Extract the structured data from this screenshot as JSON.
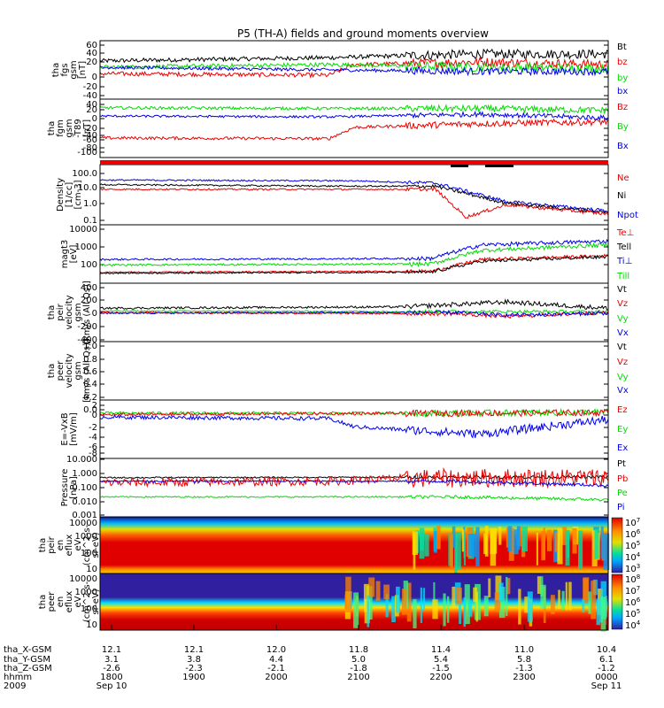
{
  "title": "P5 (TH-A) fields and ground moments overview",
  "colors": {
    "black": "#000000",
    "red": "#ee0000",
    "green": "#00dd00",
    "blue": "#0000ee"
  },
  "chart_data": {
    "type": "line",
    "x_time_ticks": [
      "1800",
      "1900",
      "2000",
      "2100",
      "2200",
      "2300",
      "0000"
    ],
    "x_date_labels": {
      "start": "Sep 10",
      "end": "Sep 11"
    },
    "x_year": "2009",
    "ephemeris": [
      {
        "label": "tha_X-GSM",
        "values": [
          "12.1",
          "12.1",
          "12.0",
          "11.8",
          "11.4",
          "11.0",
          "10.4"
        ]
      },
      {
        "label": "tha_Y-GSM",
        "values": [
          "3.1",
          "3.8",
          "4.4",
          "5.0",
          "5.4",
          "5.8",
          "6.1"
        ]
      },
      {
        "label": "tha_Z-GSM",
        "values": [
          "-2.6",
          "-2.3",
          "-2.1",
          "-1.8",
          "-1.5",
          "-1.3",
          "-1.2"
        ]
      },
      {
        "label": "hhmm",
        "values": []
      }
    ],
    "panels": [
      {
        "id": "fgs",
        "ylabel": [
          "tha",
          "fgs",
          "gsm",
          "[nT]"
        ],
        "ticks": [
          "60",
          "40",
          "20",
          "0",
          "-20",
          "-40"
        ],
        "legend": [
          [
            "Bt",
            "black"
          ],
          [
            "bz",
            "red"
          ],
          [
            "by",
            "green"
          ],
          [
            "bx",
            "blue"
          ]
        ],
        "series": [
          {
            "name": "Bt",
            "color": "black",
            "base": 22,
            "noise": 4,
            "segments": [
              [
                0,
                22
              ],
              [
                0.45,
                28
              ],
              [
                0.6,
                32
              ],
              [
                0.75,
                35
              ],
              [
                1,
                35
              ]
            ]
          },
          {
            "name": "bz",
            "color": "red",
            "base": 0,
            "noise": 4,
            "segments": [
              [
                0,
                -2
              ],
              [
                0.45,
                -5
              ],
              [
                0.5,
                15
              ],
              [
                0.75,
                20
              ],
              [
                1,
                15
              ]
            ]
          },
          {
            "name": "by",
            "color": "green",
            "base": 10,
            "noise": 4,
            "segments": [
              [
                0,
                10
              ],
              [
                0.45,
                15
              ],
              [
                0.75,
                10
              ],
              [
                1,
                8
              ]
            ]
          },
          {
            "name": "bx",
            "color": "blue",
            "base": 10,
            "noise": 3,
            "segments": [
              [
                0,
                10
              ],
              [
                0.45,
                5
              ],
              [
                0.75,
                2
              ],
              [
                1,
                2
              ]
            ]
          }
        ]
      },
      {
        "id": "fgm",
        "ylabel": [
          "tha",
          "fgm",
          "gsm",
          "-T89",
          "[nT]"
        ],
        "ticks": [
          "40",
          "20",
          "0",
          "-20",
          "-40",
          "-60",
          "-80",
          "-100"
        ],
        "legend": [
          [
            "Bz",
            "red"
          ],
          [
            "By",
            "green"
          ],
          [
            "Bx",
            "blue"
          ]
        ],
        "series": [
          {
            "name": "Bz",
            "color": "red",
            "base": -58,
            "noise": 4,
            "segments": [
              [
                0,
                -58
              ],
              [
                0.45,
                -60
              ],
              [
                0.5,
                -30
              ],
              [
                0.75,
                -20
              ],
              [
                1,
                -15
              ]
            ]
          },
          {
            "name": "By",
            "color": "green",
            "base": 22,
            "noise": 4,
            "segments": [
              [
                0,
                22
              ],
              [
                0.45,
                20
              ],
              [
                0.75,
                20
              ],
              [
                1,
                15
              ]
            ]
          },
          {
            "name": "Bx",
            "color": "blue",
            "base": 0,
            "noise": 3,
            "segments": [
              [
                0,
                0
              ],
              [
                0.45,
                -2
              ],
              [
                0.75,
                5
              ],
              [
                1,
                -5
              ]
            ]
          }
        ]
      },
      {
        "id": "density",
        "ylabel": [
          "Density",
          "[1/cc]",
          "[cm-3]"
        ],
        "ticks": [
          "100.0",
          "10.0",
          "1.0",
          "0.1"
        ],
        "legend": [
          [
            "Ne",
            "red"
          ],
          [
            "Ni",
            "black"
          ],
          [
            "Npot",
            "blue"
          ]
        ],
        "series": [
          {
            "name": "Npot",
            "color": "blue",
            "base": 1.6,
            "noise": 0.05,
            "segments": [
              [
                0,
                1.6
              ],
              [
                0.5,
                1.55
              ],
              [
                0.66,
                1.4
              ],
              [
                0.8,
                0.2
              ],
              [
                1,
                -0.4
              ]
            ]
          },
          {
            "name": "Ni",
            "color": "black",
            "base": 1.3,
            "noise": 0.05,
            "segments": [
              [
                0,
                1.3
              ],
              [
                0.5,
                1.2
              ],
              [
                0.66,
                1.2
              ],
              [
                0.8,
                0.1
              ],
              [
                1,
                -0.5
              ]
            ]
          },
          {
            "name": "Ne",
            "color": "red",
            "base": 1.0,
            "noise": 0.05,
            "segments": [
              [
                0,
                1.0
              ],
              [
                0.66,
                1.0
              ],
              [
                0.72,
                -0.8
              ],
              [
                0.8,
                0.0
              ],
              [
                1,
                -0.6
              ]
            ]
          }
        ]
      },
      {
        "id": "magt3",
        "ylabel": [
          "magt3",
          "[eV]"
        ],
        "ticks": [
          "10000",
          "1000",
          "100"
        ],
        "legend": [
          [
            "Te⊥",
            "red"
          ],
          [
            "Tell",
            "black"
          ],
          [
            "Ti⊥",
            "blue"
          ],
          [
            "Till",
            "green"
          ]
        ],
        "series": [
          {
            "name": "Ti⊥",
            "color": "blue",
            "base": 2.3,
            "noise": 0.05,
            "segments": [
              [
                0,
                2.3
              ],
              [
                0.65,
                2.35
              ],
              [
                0.75,
                3.1
              ],
              [
                1,
                3.3
              ]
            ]
          },
          {
            "name": "Till",
            "color": "green",
            "base": 2.0,
            "noise": 0.05,
            "segments": [
              [
                0,
                2.0
              ],
              [
                0.65,
                2.05
              ],
              [
                0.75,
                2.8
              ],
              [
                1,
                3.1
              ]
            ]
          },
          {
            "name": "Te⊥",
            "color": "red",
            "base": 1.6,
            "noise": 0.04,
            "segments": [
              [
                0,
                1.6
              ],
              [
                0.65,
                1.65
              ],
              [
                0.75,
                2.3
              ],
              [
                1,
                2.5
              ]
            ]
          },
          {
            "name": "Tell",
            "color": "black",
            "base": 1.55,
            "noise": 0.04,
            "segments": [
              [
                0,
                1.55
              ],
              [
                0.65,
                1.6
              ],
              [
                0.75,
                2.2
              ],
              [
                1,
                2.45
              ]
            ]
          }
        ]
      },
      {
        "id": "peir",
        "ylabel": [
          "tha",
          "peir",
          "velocity",
          "gsm",
          "[km/s (All Qs)]"
        ],
        "ticks": [
          "400",
          "200",
          "0",
          "-200",
          "-400"
        ],
        "legend": [
          [
            "Vt",
            "black"
          ],
          [
            "Vz",
            "red"
          ],
          [
            "Vy",
            "green"
          ],
          [
            "Vx",
            "blue"
          ]
        ],
        "series": [
          {
            "name": "Vt",
            "color": "black",
            "base": 60,
            "noise": 15,
            "segments": [
              [
                0,
                60
              ],
              [
                0.6,
                80
              ],
              [
                0.8,
                150
              ],
              [
                1,
                60
              ]
            ]
          },
          {
            "name": "Vy",
            "color": "green",
            "base": 20,
            "noise": 10,
            "segments": [
              [
                0,
                20
              ],
              [
                1,
                10
              ]
            ]
          },
          {
            "name": "Vz",
            "color": "red",
            "base": 0,
            "noise": 12,
            "segments": [
              [
                0,
                0
              ],
              [
                0.7,
                -20
              ],
              [
                0.8,
                -60
              ],
              [
                1,
                0
              ]
            ]
          },
          {
            "name": "Vx",
            "color": "blue",
            "base": -10,
            "noise": 12,
            "segments": [
              [
                0,
                -10
              ],
              [
                0.7,
                0
              ],
              [
                0.8,
                -40
              ],
              [
                1,
                -10
              ]
            ]
          }
        ]
      },
      {
        "id": "peer",
        "ylabel": [
          "tha",
          "peer",
          "velocity",
          "gsm",
          "[km/s (All Qs)]"
        ],
        "ticks": [
          "1.0",
          "0.8",
          "0.6",
          "0.4",
          "0.2",
          "0.0"
        ],
        "legend": [
          [
            "Vt",
            "black"
          ],
          [
            "Vz",
            "red"
          ],
          [
            "Vy",
            "green"
          ],
          [
            "Vx",
            "blue"
          ]
        ],
        "series": []
      },
      {
        "id": "efield",
        "ylabel": [
          "E=-VxB",
          "[mV/m]"
        ],
        "ticks": [
          "2",
          "0",
          "-2",
          "-4",
          "-6",
          "-8"
        ],
        "legend": [
          [
            "Ez",
            "red"
          ],
          [
            "Ey",
            "green"
          ],
          [
            "Ex",
            "blue"
          ]
        ],
        "series": [
          {
            "name": "Ey",
            "color": "green",
            "base": 0.3,
            "noise": 0.3,
            "segments": [
              [
                0,
                0.3
              ],
              [
                0.7,
                0.3
              ],
              [
                1,
                0.5
              ]
            ]
          },
          {
            "name": "Ez",
            "color": "red",
            "base": 0.0,
            "noise": 0.3,
            "segments": [
              [
                0,
                0
              ],
              [
                0.7,
                0.3
              ],
              [
                1,
                0.4
              ]
            ]
          },
          {
            "name": "Ex",
            "color": "blue",
            "base": -0.5,
            "noise": 0.4,
            "segments": [
              [
                0,
                -0.5
              ],
              [
                0.45,
                -0.8
              ],
              [
                0.5,
                -2.5
              ],
              [
                0.75,
                -4
              ],
              [
                1,
                -1
              ]
            ]
          }
        ]
      },
      {
        "id": "pressure",
        "ylabel": [
          "Pressure",
          "[nPa]"
        ],
        "ticks": [
          "10.000",
          "1.000",
          "0.100",
          "0.010",
          "0.001"
        ],
        "legend": [
          [
            "Pt",
            "black"
          ],
          [
            "Pb",
            "red"
          ],
          [
            "Pe",
            "green"
          ],
          [
            "Pi",
            "blue"
          ]
        ],
        "series": [
          {
            "name": "Pt",
            "color": "black",
            "base": -0.25,
            "noise": 0.05,
            "segments": [
              [
                0,
                -0.25
              ],
              [
                1,
                -0.2
              ]
            ]
          },
          {
            "name": "Pb",
            "color": "red",
            "base": -0.6,
            "noise": 0.3,
            "segments": [
              [
                0,
                -0.6
              ],
              [
                0.45,
                -0.5
              ],
              [
                0.6,
                -0.3
              ],
              [
                1,
                -0.25
              ]
            ]
          },
          {
            "name": "Pi",
            "color": "blue",
            "base": -0.5,
            "noise": 0.05,
            "segments": [
              [
                0,
                -0.5
              ],
              [
                0.7,
                -0.5
              ],
              [
                1,
                -0.8
              ]
            ]
          },
          {
            "name": "Pe",
            "color": "green",
            "base": -1.6,
            "noise": 0.05,
            "segments": [
              [
                0,
                -1.6
              ],
              [
                0.7,
                -1.6
              ],
              [
                1,
                -1.8
              ]
            ]
          }
        ]
      },
      {
        "id": "peir_en",
        "ylabel": [
          "tha",
          "peir",
          "en",
          "eflux",
          "eV",
          "(cm^2-s-",
          "sr-eV)"
        ],
        "ticks": [
          "10000",
          "1000",
          "100",
          "10"
        ],
        "colorbar_ticks": [
          "10^7",
          "10^6",
          "10^5",
          "10^4",
          "10^3"
        ],
        "series": []
      },
      {
        "id": "peer_en",
        "ylabel": [
          "tha",
          "peer",
          "en",
          "eflux",
          "eV",
          "(cm^2-s-",
          "sr-eV)"
        ],
        "ticks": [
          "10000",
          "1000",
          "100",
          "10"
        ],
        "colorbar_ticks": [
          "10^8",
          "10^7",
          "10^6",
          "10^5",
          "10^4"
        ],
        "series": []
      }
    ]
  }
}
